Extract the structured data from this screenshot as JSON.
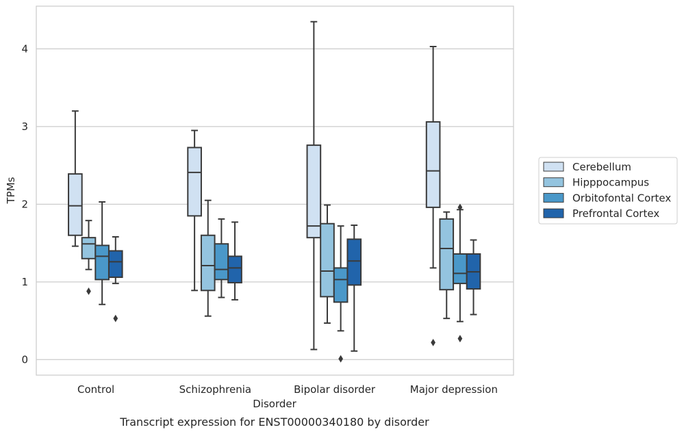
{
  "caption": "Transcript expression for ENST00000340180 by disorder",
  "chart_data": {
    "type": "box",
    "xlabel": "Disorder",
    "ylabel": "TPMs",
    "ylim": [
      -0.2,
      4.55
    ],
    "yticks": [
      "0",
      "1",
      "2",
      "3",
      "4"
    ],
    "grid": "horizontal",
    "legend_position": "right",
    "categories": [
      "Control",
      "Schizophrenia",
      "Bipolar disorder",
      "Major depression"
    ],
    "series": [
      {
        "name": "Cerebellum",
        "color": "#d0e1f2",
        "boxes": [
          {
            "whislo": 1.46,
            "q1": 1.6,
            "med": 1.98,
            "q3": 2.39,
            "whishi": 3.2,
            "fliers": []
          },
          {
            "whislo": 0.89,
            "q1": 1.85,
            "med": 2.41,
            "q3": 2.73,
            "whishi": 2.95,
            "fliers": []
          },
          {
            "whislo": 0.13,
            "q1": 1.57,
            "med": 1.72,
            "q3": 2.76,
            "whishi": 4.35,
            "fliers": []
          },
          {
            "whislo": 1.18,
            "q1": 1.96,
            "med": 2.43,
            "q3": 3.06,
            "whishi": 4.03,
            "fliers": [
              0.22
            ]
          }
        ]
      },
      {
        "name": "Hipppocampus",
        "color": "#94c4df",
        "boxes": [
          {
            "whislo": 1.16,
            "q1": 1.3,
            "med": 1.49,
            "q3": 1.57,
            "whishi": 1.79,
            "fliers": [
              0.88
            ]
          },
          {
            "whislo": 0.56,
            "q1": 0.89,
            "med": 1.21,
            "q3": 1.6,
            "whishi": 2.05,
            "fliers": []
          },
          {
            "whislo": 0.47,
            "q1": 0.81,
            "med": 1.14,
            "q3": 1.75,
            "whishi": 1.99,
            "fliers": []
          },
          {
            "whislo": 0.53,
            "q1": 0.9,
            "med": 1.43,
            "q3": 1.81,
            "whishi": 1.9,
            "fliers": []
          }
        ]
      },
      {
        "name": "Orbitofontal Cortex",
        "color": "#4a98c9",
        "boxes": [
          {
            "whislo": 0.71,
            "q1": 1.03,
            "med": 1.33,
            "q3": 1.47,
            "whishi": 2.03,
            "fliers": []
          },
          {
            "whislo": 0.8,
            "q1": 1.03,
            "med": 1.16,
            "q3": 1.49,
            "whishi": 1.81,
            "fliers": []
          },
          {
            "whislo": 0.37,
            "q1": 0.74,
            "med": 1.03,
            "q3": 1.18,
            "whishi": 1.72,
            "fliers": [
              0.01
            ]
          },
          {
            "whislo": 0.49,
            "q1": 0.98,
            "med": 1.11,
            "q3": 1.36,
            "whishi": 1.93,
            "fliers": [
              0.27,
              1.96
            ]
          }
        ]
      },
      {
        "name": "Prefrontal Cortex",
        "color": "#2164ab",
        "boxes": [
          {
            "whislo": 0.98,
            "q1": 1.06,
            "med": 1.26,
            "q3": 1.4,
            "whishi": 1.58,
            "fliers": [
              0.53
            ]
          },
          {
            "whislo": 0.77,
            "q1": 0.99,
            "med": 1.18,
            "q3": 1.33,
            "whishi": 1.77,
            "fliers": []
          },
          {
            "whislo": 0.11,
            "q1": 0.96,
            "med": 1.27,
            "q3": 1.55,
            "whishi": 1.73,
            "fliers": []
          },
          {
            "whislo": 0.58,
            "q1": 0.91,
            "med": 1.13,
            "q3": 1.36,
            "whishi": 1.54,
            "fliers": []
          }
        ]
      }
    ]
  }
}
